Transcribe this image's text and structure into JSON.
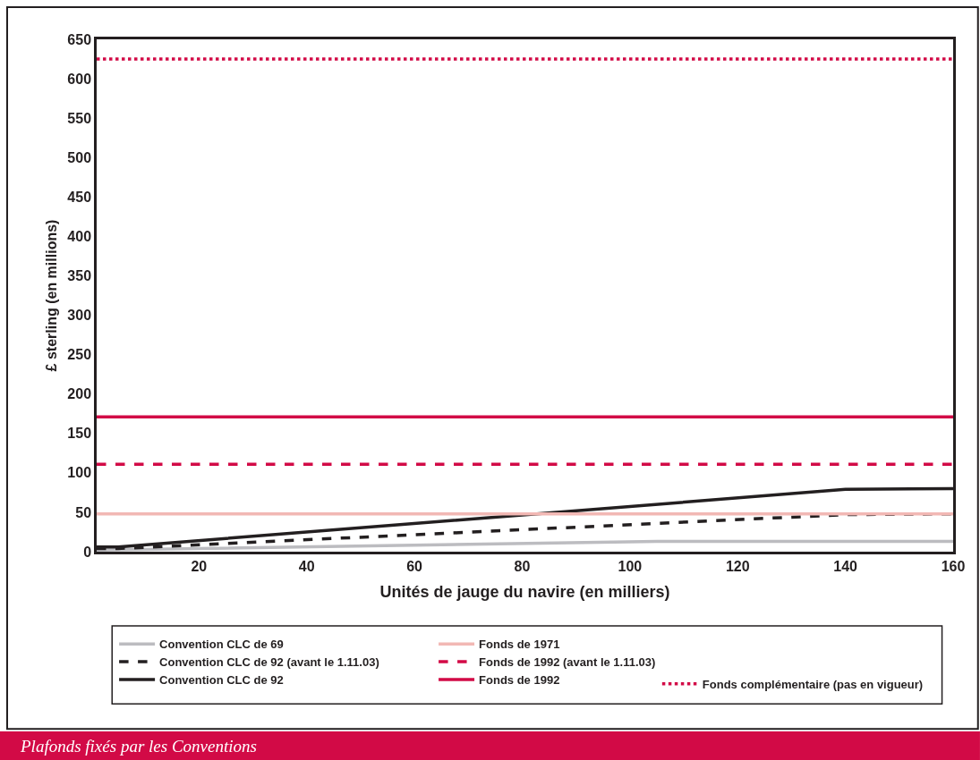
{
  "chart_data": {
    "type": "line",
    "title": "Plafonds fixés par les Conventions",
    "xlabel": "Unités de jauge du navire (en milliers)",
    "ylabel": "£ sterling (en millions)",
    "xlim": [
      1,
      160
    ],
    "xticks": [
      20,
      40,
      60,
      80,
      100,
      120,
      140,
      160
    ],
    "ylim": [
      0,
      650
    ],
    "yticks": [
      0,
      50,
      100,
      150,
      200,
      250,
      300,
      350,
      400,
      450,
      500,
      550,
      600,
      650
    ],
    "legend": "bottom",
    "marker": "none",
    "series": [
      {
        "name": "Convention CLC de 69",
        "color": "#bcbcc0",
        "line_style": "solid",
        "x": [
          1,
          105,
          160
        ],
        "values": [
          2,
          13,
          13
        ]
      },
      {
        "name": "Convention CLC de 92 (avant le 1.11.03)",
        "color": "#231f20",
        "line_style": "dashed",
        "x": [
          1,
          5,
          140,
          160
        ],
        "values": [
          4,
          4,
          47,
          48
        ]
      },
      {
        "name": "Convention CLC de 92",
        "color": "#231f20",
        "line_style": "solid",
        "x": [
          1,
          5,
          140,
          160
        ],
        "values": [
          6,
          6,
          79,
          80
        ]
      },
      {
        "name": "Fonds de 1971",
        "color": "#f2b8b4",
        "line_style": "solid",
        "x": [
          1,
          160
        ],
        "values": [
          48,
          48
        ]
      },
      {
        "name": "Fonds de 1992 (avant le 1.11.03)",
        "color": "#d20a46",
        "line_style": "dashed",
        "x": [
          1,
          160
        ],
        "values": [
          111,
          111
        ]
      },
      {
        "name": "Fonds de 1992",
        "color": "#d20a46",
        "line_style": "solid",
        "x": [
          1,
          160
        ],
        "values": [
          171,
          171
        ]
      },
      {
        "name": "Fonds complémentaire (pas en vigueur)",
        "color": "#d20a46",
        "line_style": "dotted",
        "x": [
          1,
          160
        ],
        "values": [
          625,
          625
        ]
      }
    ]
  }
}
